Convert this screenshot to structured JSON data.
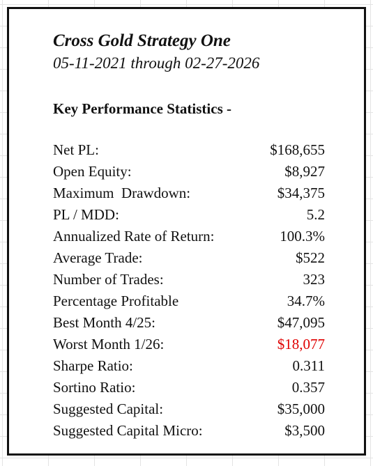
{
  "report": {
    "title": "Cross Gold Strategy One",
    "date_range": "05-11-2021 through 02-27-2026",
    "section_heading": "Key Performance Statistics -",
    "stats": [
      {
        "label": "Net PL:",
        "value": "$168,655"
      },
      {
        "label": "Open Equity:",
        "value": "$8,927"
      },
      {
        "label": "Maximum  Drawdown:",
        "value": "$34,375"
      },
      {
        "label": "PL / MDD:",
        "value": "5.2"
      },
      {
        "label": "Annualized Rate of Return:",
        "value": "100.3%"
      },
      {
        "label": "Average Trade:",
        "value": "$522"
      },
      {
        "label": "Number of Trades:",
        "value": "323"
      },
      {
        "label": "Percentage Profitable",
        "value": "34.7%"
      },
      {
        "label": "Best Month 4/25:",
        "value": "$47,095"
      },
      {
        "label": "Worst Month 1/26:",
        "value": "$18,077",
        "value_color": "#e00000"
      },
      {
        "label": "Sharpe Ratio:",
        "value": "0.311"
      },
      {
        "label": "Sortino Ratio:",
        "value": "0.357"
      },
      {
        "label": "Suggested Capital:",
        "value": "$35,000"
      },
      {
        "label": "Suggested Capital Micro:",
        "value": "$3,500"
      }
    ]
  }
}
